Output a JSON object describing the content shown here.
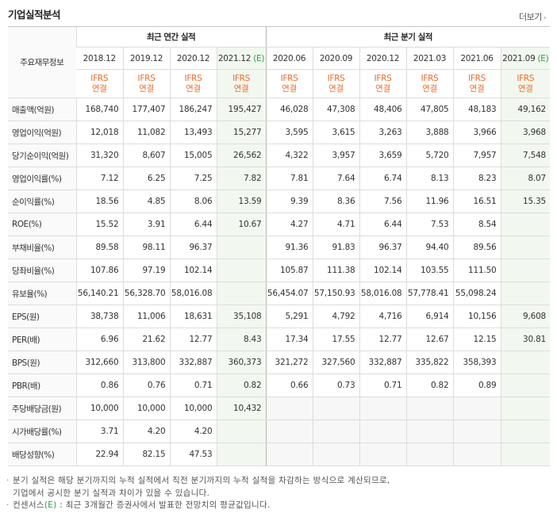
{
  "section": {
    "title": "기업실적분석",
    "more_label": "더보기",
    "more_icon": "chevron-right-icon"
  },
  "header": {
    "label": "주요재무정보",
    "annual_group": "최근 연간 실적",
    "quarter_group": "최근 분기 실적",
    "annual_periods": [
      {
        "period": "2018.12",
        "est": "",
        "acc": "IFRS",
        "type": "연결"
      },
      {
        "period": "2019.12",
        "est": "",
        "acc": "IFRS",
        "type": "연결"
      },
      {
        "period": "2020.12",
        "est": "",
        "acc": "IFRS",
        "type": "연결"
      },
      {
        "period": "2021.12",
        "est": "(E)",
        "acc": "IFRS",
        "type": "연결"
      }
    ],
    "quarter_periods": [
      {
        "period": "2020.06",
        "est": "",
        "acc": "IFRS",
        "type": "연결"
      },
      {
        "period": "2020.09",
        "est": "",
        "acc": "IFRS",
        "type": "연결"
      },
      {
        "period": "2020.12",
        "est": "",
        "acc": "IFRS",
        "type": "연결"
      },
      {
        "period": "2021.03",
        "est": "",
        "acc": "IFRS",
        "type": "연결"
      },
      {
        "period": "2021.06",
        "est": "",
        "acc": "IFRS",
        "type": "연결"
      },
      {
        "period": "2021.09",
        "est": "(E)",
        "acc": "IFRS",
        "type": "연결"
      }
    ]
  },
  "rows": [
    {
      "label": "매출액(억원)",
      "values": [
        "168,740",
        "177,407",
        "186,247",
        "195,427",
        "46,028",
        "47,308",
        "48,406",
        "47,805",
        "48,183",
        "49,162"
      ]
    },
    {
      "label": "영업이익(억원)",
      "values": [
        "12,018",
        "11,082",
        "13,493",
        "15,277",
        "3,595",
        "3,615",
        "3,263",
        "3,888",
        "3,966",
        "3,968"
      ]
    },
    {
      "label": "당기순이익(억원)",
      "values": [
        "31,320",
        "8,607",
        "15,005",
        "26,562",
        "4,322",
        "3,957",
        "3,659",
        "5,720",
        "7,957",
        "7,548"
      ]
    },
    {
      "label": "영업이익률(%)",
      "values": [
        "7.12",
        "6.25",
        "7.25",
        "7.82",
        "7.81",
        "7.64",
        "6.74",
        "8.13",
        "8.23",
        "8.07"
      ]
    },
    {
      "label": "순이익률(%)",
      "values": [
        "18.56",
        "4.85",
        "8.06",
        "13.59",
        "9.39",
        "8.36",
        "7.56",
        "11.96",
        "16.51",
        "15.35"
      ]
    },
    {
      "label": "ROE(%)",
      "values": [
        "15.52",
        "3.91",
        "6.44",
        "10.67",
        "4.27",
        "4.71",
        "6.44",
        "7.53",
        "8.54",
        ""
      ]
    },
    {
      "label": "부채비율(%)",
      "values": [
        "89.58",
        "98.11",
        "96.37",
        "",
        "91.36",
        "91.83",
        "96.37",
        "94.40",
        "89.56",
        ""
      ]
    },
    {
      "label": "당좌비율(%)",
      "values": [
        "107.86",
        "97.19",
        "102.14",
        "",
        "105.87",
        "111.38",
        "102.14",
        "103.55",
        "111.50",
        ""
      ]
    },
    {
      "label": "유보율(%)",
      "values": [
        "56,140.21",
        "56,328.70",
        "58,016.08",
        "",
        "56,454.07",
        "57,150.93",
        "58,016.08",
        "57,778.41",
        "55,098.24",
        ""
      ]
    },
    {
      "label": "EPS(원)",
      "values": [
        "38,738",
        "11,006",
        "18,631",
        "35,108",
        "5,291",
        "4,792",
        "4,716",
        "6,914",
        "10,156",
        "9,608"
      ]
    },
    {
      "label": "PER(배)",
      "values": [
        "6.96",
        "21.62",
        "12.77",
        "8.43",
        "17.34",
        "17.55",
        "12.77",
        "12.67",
        "12.15",
        "30.81"
      ]
    },
    {
      "label": "BPS(원)",
      "values": [
        "312,660",
        "313,800",
        "332,887",
        "360,373",
        "321,272",
        "327,560",
        "332,887",
        "335,822",
        "358,393",
        ""
      ]
    },
    {
      "label": "PBR(배)",
      "values": [
        "0.86",
        "0.76",
        "0.71",
        "0.82",
        "0.66",
        "0.73",
        "0.71",
        "0.82",
        "0.89",
        ""
      ]
    },
    {
      "label": "주당배당금(원)",
      "values": [
        "10,000",
        "10,000",
        "10,000",
        "10,432",
        "",
        "",
        "",
        "",
        "",
        ""
      ]
    },
    {
      "label": "시가배당률(%)",
      "values": [
        "3.71",
        "4.20",
        "4.20",
        "",
        "",
        "",
        "",
        "",
        "",
        ""
      ]
    },
    {
      "label": "배당성향(%)",
      "values": [
        "22.94",
        "82.15",
        "47.53",
        "",
        "",
        "",
        "",
        "",
        "",
        ""
      ]
    }
  ],
  "notes": {
    "line1a": "분기 실적은 해당 분기까지의 누적 실적에서 직전 분기까지의 누적 실적을 차감하는 방식으로 계산되므로,",
    "line1b": "기업에서 공시한 분기 실적과 차이가 있을 수 있습니다.",
    "line2_prefix": "컨센서스",
    "line2_est": "(E)",
    "line2_text": " : 최근 3개월간 증권사에서 발표한 전망치의 평균값입니다."
  },
  "colors": {
    "ifrs": "#ee6b27",
    "estimate": "#2c9d45",
    "estimate_bg": "#f2f8f0",
    "empty_bg": "#f7f7f7"
  }
}
